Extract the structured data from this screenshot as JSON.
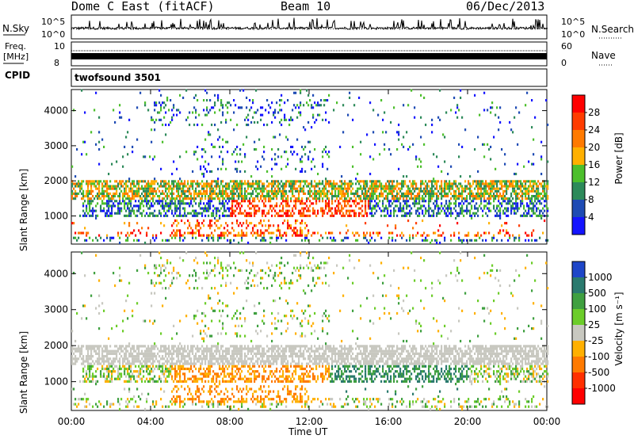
{
  "header": {
    "station": "Dome C East (fitACF)",
    "beam": "Beam 10",
    "date": "06/Dec/2013"
  },
  "nsky_panel": {
    "label": "N.Sky",
    "tick_top": "10^5",
    "tick_bottom": "10^0",
    "right_label": "N.Search",
    "right_tick_top": "10^5",
    "right_tick_bottom": "10^0"
  },
  "freq_panel": {
    "label_line1": "Freq.",
    "label_line2": "[MHz]",
    "tick_top": "10",
    "tick_bottom": "8",
    "right_label": "Nave",
    "right_tick_top": "60",
    "right_tick_bottom": "0"
  },
  "cpid_panel": {
    "label": "CPID",
    "value": "twofsound 3501"
  },
  "chart_data": [
    {
      "type": "heatmap",
      "name": "power",
      "ylabel": "Slant Range [km]",
      "ylim": [
        200,
        4600
      ],
      "yticks": [
        1000,
        2000,
        3000,
        4000
      ],
      "xlim_hours": [
        0,
        24
      ],
      "colorbar": {
        "label": "Power [dB]",
        "ticks": [
          "4",
          "8",
          "12",
          "16",
          "20",
          "24",
          "28"
        ],
        "range": [
          0,
          32
        ],
        "colors": [
          "#1414ff",
          "#1e4bb4",
          "#2d8a5a",
          "#4cbf2c",
          "#ffb000",
          "#ff7a00",
          "#ff3c00",
          "#ff0000"
        ]
      }
    },
    {
      "type": "heatmap",
      "name": "velocity",
      "ylabel": "Slant Range [km]",
      "ylim": [
        200,
        4600
      ],
      "yticks": [
        1000,
        2000,
        3000,
        4000
      ],
      "xlim_hours": [
        0,
        24
      ],
      "colorbar": {
        "label": "Velocity [m s⁻¹]",
        "ticks": [
          "1000",
          "500",
          "100",
          "25",
          "-25",
          "-100",
          "-500",
          "-1000"
        ],
        "colors": [
          "#1e46c8",
          "#2a7a6e",
          "#3fa040",
          "#6ccd2a",
          "#c8c8c0",
          "#ffb000",
          "#ff7a00",
          "#ff3000",
          "#ff0000"
        ]
      }
    }
  ],
  "x_axis": {
    "ticks": [
      "00:00",
      "04:00",
      "08:00",
      "12:00",
      "16:00",
      "20:00",
      "00:00"
    ],
    "label": "Time UT"
  }
}
